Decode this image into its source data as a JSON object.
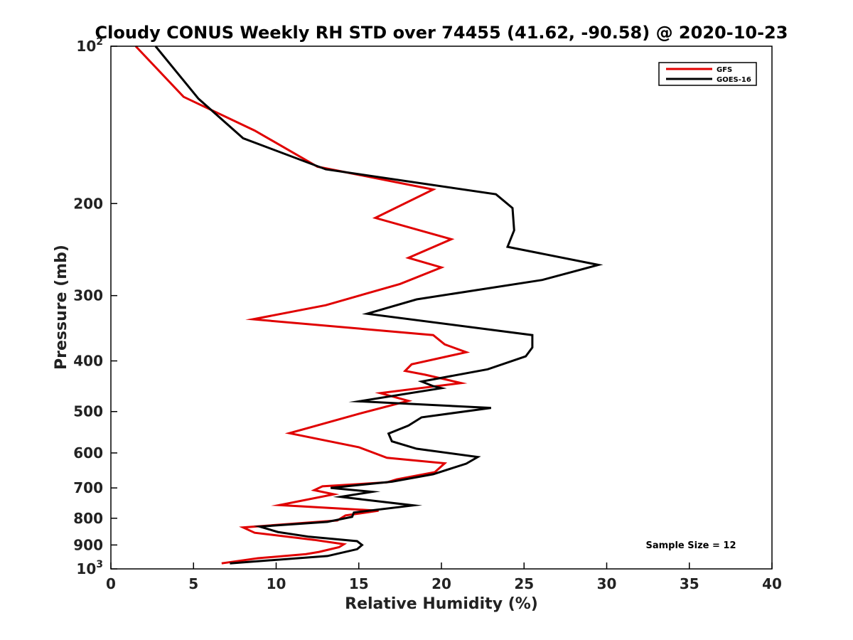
{
  "chart_data": {
    "type": "line",
    "title": "Cloudy CONUS Weekly RH STD over 74455 (41.62, -90.58) @ 2020-10-23",
    "xlabel": "Relative Humidity (%)",
    "ylabel": "Pressure (mb)",
    "xlim": [
      0,
      40
    ],
    "ylim": [
      100,
      1000
    ],
    "yscale": "log",
    "y_reversed": true,
    "grid": false,
    "legend_position": "top-right",
    "x_ticks": [
      "0",
      "5",
      "10",
      "15",
      "20",
      "25",
      "30",
      "35",
      "40"
    ],
    "y_ticks": [
      {
        "value": 100,
        "base": "10",
        "exp": "2"
      },
      {
        "value": 200,
        "label": "200"
      },
      {
        "value": 300,
        "label": "300"
      },
      {
        "value": 400,
        "label": "400"
      },
      {
        "value": 500,
        "label": "500"
      },
      {
        "value": 600,
        "label": "600"
      },
      {
        "value": 700,
        "label": "700"
      },
      {
        "value": 800,
        "label": "800"
      },
      {
        "value": 900,
        "label": "900"
      },
      {
        "value": 1000,
        "base": "10",
        "exp": "3"
      }
    ],
    "annotation": "Sample Size = 12",
    "series": [
      {
        "name": "GFS",
        "color": "#e00000",
        "points": [
          [
            1.5,
            100
          ],
          [
            4.4,
            125
          ],
          [
            8.7,
            145
          ],
          [
            12.5,
            170
          ],
          [
            19.5,
            188
          ],
          [
            16.0,
            213
          ],
          [
            20.6,
            234
          ],
          [
            18.0,
            254
          ],
          [
            20.0,
            265
          ],
          [
            17.5,
            285
          ],
          [
            13.0,
            313
          ],
          [
            8.6,
            333
          ],
          [
            19.5,
            357
          ],
          [
            20.2,
            372
          ],
          [
            21.5,
            385
          ],
          [
            18.2,
            406
          ],
          [
            17.8,
            418
          ],
          [
            19.0,
            425
          ],
          [
            21.2,
            441
          ],
          [
            16.3,
            461
          ],
          [
            18.0,
            477
          ],
          [
            15.0,
            505
          ],
          [
            10.8,
            550
          ],
          [
            15.0,
            585
          ],
          [
            16.7,
            613
          ],
          [
            20.2,
            628
          ],
          [
            19.6,
            653
          ],
          [
            17.3,
            674
          ],
          [
            16.7,
            683
          ],
          [
            12.8,
            695
          ],
          [
            12.3,
            707
          ],
          [
            13.5,
            720
          ],
          [
            10.2,
            755
          ],
          [
            16.2,
            774
          ],
          [
            14.2,
            790
          ],
          [
            13.7,
            808
          ],
          [
            8.0,
            833
          ],
          [
            8.7,
            853
          ],
          [
            12.3,
            880
          ],
          [
            14.1,
            897
          ],
          [
            13.8,
            909
          ],
          [
            12.6,
            928
          ],
          [
            11.8,
            937
          ],
          [
            8.9,
            954
          ],
          [
            6.7,
            976
          ]
        ]
      },
      {
        "name": "GOES-16",
        "color": "#000000",
        "points": [
          [
            2.7,
            100
          ],
          [
            5.3,
            126
          ],
          [
            8.0,
            150
          ],
          [
            13.0,
            172
          ],
          [
            23.3,
            192
          ],
          [
            24.3,
            204
          ],
          [
            24.4,
            225
          ],
          [
            24.0,
            242
          ],
          [
            29.5,
            262
          ],
          [
            26.1,
            280
          ],
          [
            18.5,
            305
          ],
          [
            15.5,
            325
          ],
          [
            25.5,
            357
          ],
          [
            25.5,
            377
          ],
          [
            25.1,
            392
          ],
          [
            22.8,
            415
          ],
          [
            18.8,
            438
          ],
          [
            19.5,
            447
          ],
          [
            20.0,
            451
          ],
          [
            15.0,
            478
          ],
          [
            23.0,
            492
          ],
          [
            18.8,
            513
          ],
          [
            18.0,
            532
          ],
          [
            16.8,
            551
          ],
          [
            17.0,
            570
          ],
          [
            18.5,
            589
          ],
          [
            22.2,
            611
          ],
          [
            21.5,
            629
          ],
          [
            19.5,
            659
          ],
          [
            17.0,
            681
          ],
          [
            13.3,
            700
          ],
          [
            15.8,
            712
          ],
          [
            13.9,
            728
          ],
          [
            18.3,
            756
          ],
          [
            14.7,
            780
          ],
          [
            14.6,
            795
          ],
          [
            13.1,
            813
          ],
          [
            9.0,
            830
          ],
          [
            10.1,
            850
          ],
          [
            12.0,
            868
          ],
          [
            14.9,
            885
          ],
          [
            15.2,
            900
          ],
          [
            14.9,
            917
          ],
          [
            13.1,
            945
          ],
          [
            7.2,
            976
          ]
        ]
      }
    ]
  }
}
